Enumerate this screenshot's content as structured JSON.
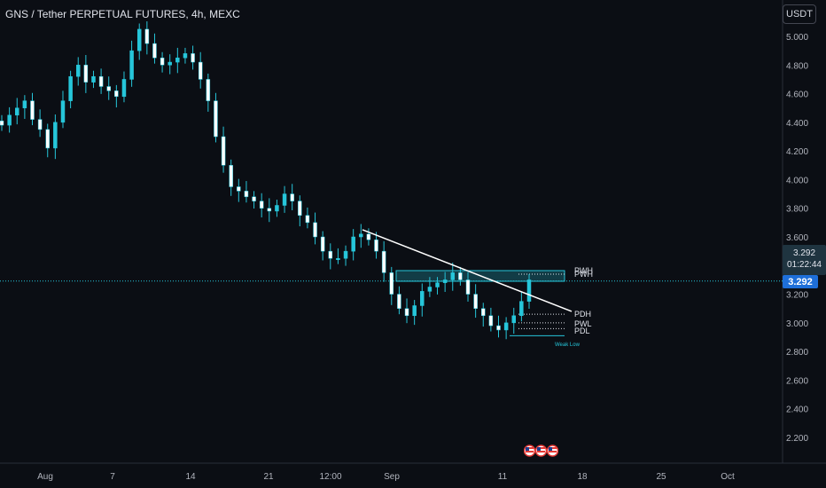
{
  "header": {
    "title": "GNS / Tether PERPETUAL FUTURES, 4h, MEXC",
    "currency_button": "USDT"
  },
  "price_box": {
    "price": "3.292",
    "countdown": "01:22:44"
  },
  "price_tag": "3.292",
  "annotations": {
    "pwh": "PWH",
    "pdh": "PDH",
    "pwl": "PWL",
    "pdl": "PDL",
    "weak_low": "Weak Low"
  },
  "colors": {
    "background": "#0b0e14",
    "candle": "#26c6da",
    "trendline": "#ffffff",
    "zone": "#26c6da",
    "price_line": "#26c6da",
    "price_tag": "#1e6fd9"
  },
  "chart_data": {
    "type": "line",
    "title": "GNS / Tether PERPETUAL FUTURES, 4h, MEXC",
    "xlabel": "",
    "ylabel": "",
    "x_ticks": [
      "Aug",
      "7",
      "14",
      "21",
      "12:00",
      "Sep",
      "11",
      "18",
      "25",
      "Oct"
    ],
    "y_ticks": [
      "2.200",
      "2.400",
      "2.600",
      "2.800",
      "3.000",
      "3.200",
      "3.400",
      "3.600",
      "3.800",
      "4.000",
      "4.200",
      "4.400",
      "4.600",
      "4.800",
      "5.000"
    ],
    "ylim": [
      2.0,
      5.1
    ],
    "grid": false,
    "series": [
      {
        "values": [
          4.38,
          4.45,
          4.5,
          4.55,
          4.42,
          4.35,
          4.22,
          4.4,
          4.55,
          4.72,
          4.8,
          4.68,
          4.72,
          4.65,
          4.62,
          4.58,
          4.7,
          4.9,
          5.05,
          4.95,
          4.85,
          4.8,
          4.82,
          4.85,
          4.88,
          4.82,
          4.7,
          4.55,
          4.3,
          4.1,
          3.95,
          3.92,
          3.88,
          3.85,
          3.8,
          3.78,
          3.82,
          3.9,
          3.85,
          3.75,
          3.7,
          3.6,
          3.5,
          3.45,
          3.45,
          3.5,
          3.6,
          3.62,
          3.58,
          3.5,
          3.35,
          3.2,
          3.1,
          3.05,
          3.12,
          3.22,
          3.25,
          3.28,
          3.3,
          3.35,
          3.3,
          3.2,
          3.1,
          3.05,
          2.98,
          2.95,
          3.0,
          3.05,
          3.15,
          3.3
        ]
      }
    ],
    "trendline": {
      "start_value": 3.65,
      "end_value": 3.08
    },
    "levels": [
      {
        "label": "PWH",
        "value": 3.34
      },
      {
        "label": "PDH",
        "value": 3.06
      },
      {
        "label": "PWL",
        "value": 3.0
      },
      {
        "label": "PDL",
        "value": 2.96
      },
      {
        "label": "Weak Low",
        "value": 2.91
      }
    ],
    "current_price": 3.292
  }
}
